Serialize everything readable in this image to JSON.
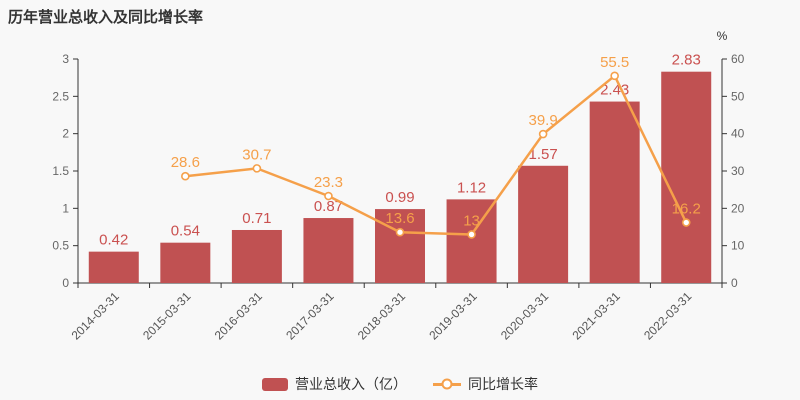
{
  "title": "历年营业总收入及同比增长率",
  "colors": {
    "background": "#f8f8f8",
    "bar": "#c05152",
    "bar_label": "#ca5150",
    "line": "#f5a04a",
    "axis": "#333333",
    "tick_label": "#666666",
    "x_label": "#555555",
    "title": "#333333"
  },
  "chart_data": {
    "type": "bar",
    "subtype": "bar-line-combo",
    "title": "历年营业总收入及同比增长率",
    "categories": [
      "2014-03-31",
      "2015-03-31",
      "2016-03-31",
      "2017-03-31",
      "2018-03-31",
      "2019-03-31",
      "2020-03-31",
      "2021-03-31",
      "2022-03-31"
    ],
    "series": [
      {
        "name": "营业总收入（亿）",
        "type": "bar",
        "axis": "left",
        "color": "#c05152",
        "values": [
          0.42,
          0.54,
          0.71,
          0.87,
          0.99,
          1.12,
          1.57,
          2.43,
          2.83
        ],
        "labels": [
          "0.42",
          "0.54",
          "0.71",
          "0.87",
          "0.99",
          "1.12",
          "1.57",
          "2.43",
          "2.83"
        ]
      },
      {
        "name": "同比增长率",
        "type": "line",
        "axis": "right",
        "color": "#f5a04a",
        "values": [
          null,
          28.6,
          30.7,
          23.3,
          13.6,
          13,
          39.9,
          55.5,
          16.2
        ],
        "labels": [
          "",
          "28.6",
          "30.7",
          "23.3",
          "13.6",
          "13",
          "39.9",
          "55.5",
          "16.2"
        ]
      }
    ],
    "left_axis": {
      "min": 0,
      "max": 3,
      "ticks": [
        "0",
        "0.5",
        "1",
        "1.5",
        "2",
        "2.5",
        "3"
      ]
    },
    "right_axis": {
      "min": 0,
      "max": 60,
      "unit": "%",
      "ticks": [
        "0",
        "10",
        "20",
        "30",
        "40",
        "50",
        "60"
      ]
    },
    "grid_lines": false,
    "legend_position": "bottom-center",
    "x_label_rotation": -45
  }
}
